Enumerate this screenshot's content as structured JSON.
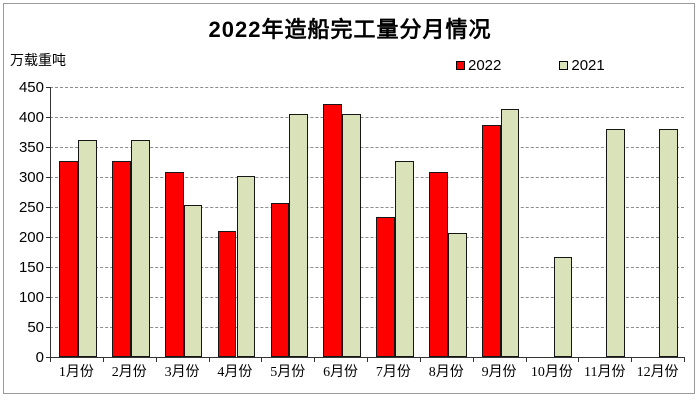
{
  "title": "2022年造船完工量分月情况",
  "y_axis_unit_label": "万载重吨",
  "legend": {
    "items": [
      {
        "label": "2022",
        "color": "#ff0000"
      },
      {
        "label": "2021",
        "color": "#d9e2b8"
      }
    ]
  },
  "colors": {
    "series_2022": "#ff0000",
    "series_2021": "#d9e2b8",
    "bar_border": "#161616",
    "gridline": "#8c8c8c",
    "axis": "#333333",
    "frame_border": "#9a9a9a",
    "background": "#ffffff",
    "text": "#000000"
  },
  "chart_data": {
    "type": "bar",
    "title": "2022年造船完工量分月情况",
    "xlabel": "",
    "ylabel": "万载重吨",
    "categories": [
      "1月份",
      "2月份",
      "3月份",
      "4月份",
      "5月份",
      "6月份",
      "7月份",
      "8月份",
      "9月份",
      "10月份",
      "11月份",
      "12月份"
    ],
    "series": [
      {
        "name": "2022",
        "color": "#ff0000",
        "values": [
          326,
          326,
          308,
          210,
          256,
          422,
          234,
          308,
          386,
          null,
          null,
          null
        ]
      },
      {
        "name": "2021",
        "color": "#d9e2b8",
        "values": [
          361,
          361,
          254,
          302,
          405,
          405,
          326,
          207,
          414,
          166,
          380,
          380
        ]
      }
    ],
    "ylim": [
      0,
      450
    ],
    "ytick_step": 50,
    "ytick_labels": [
      "0",
      "50",
      "100",
      "150",
      "200",
      "250",
      "300",
      "350",
      "400",
      "450"
    ],
    "grid": true,
    "gridline_style": "dashed",
    "legend_position": "top-right"
  }
}
